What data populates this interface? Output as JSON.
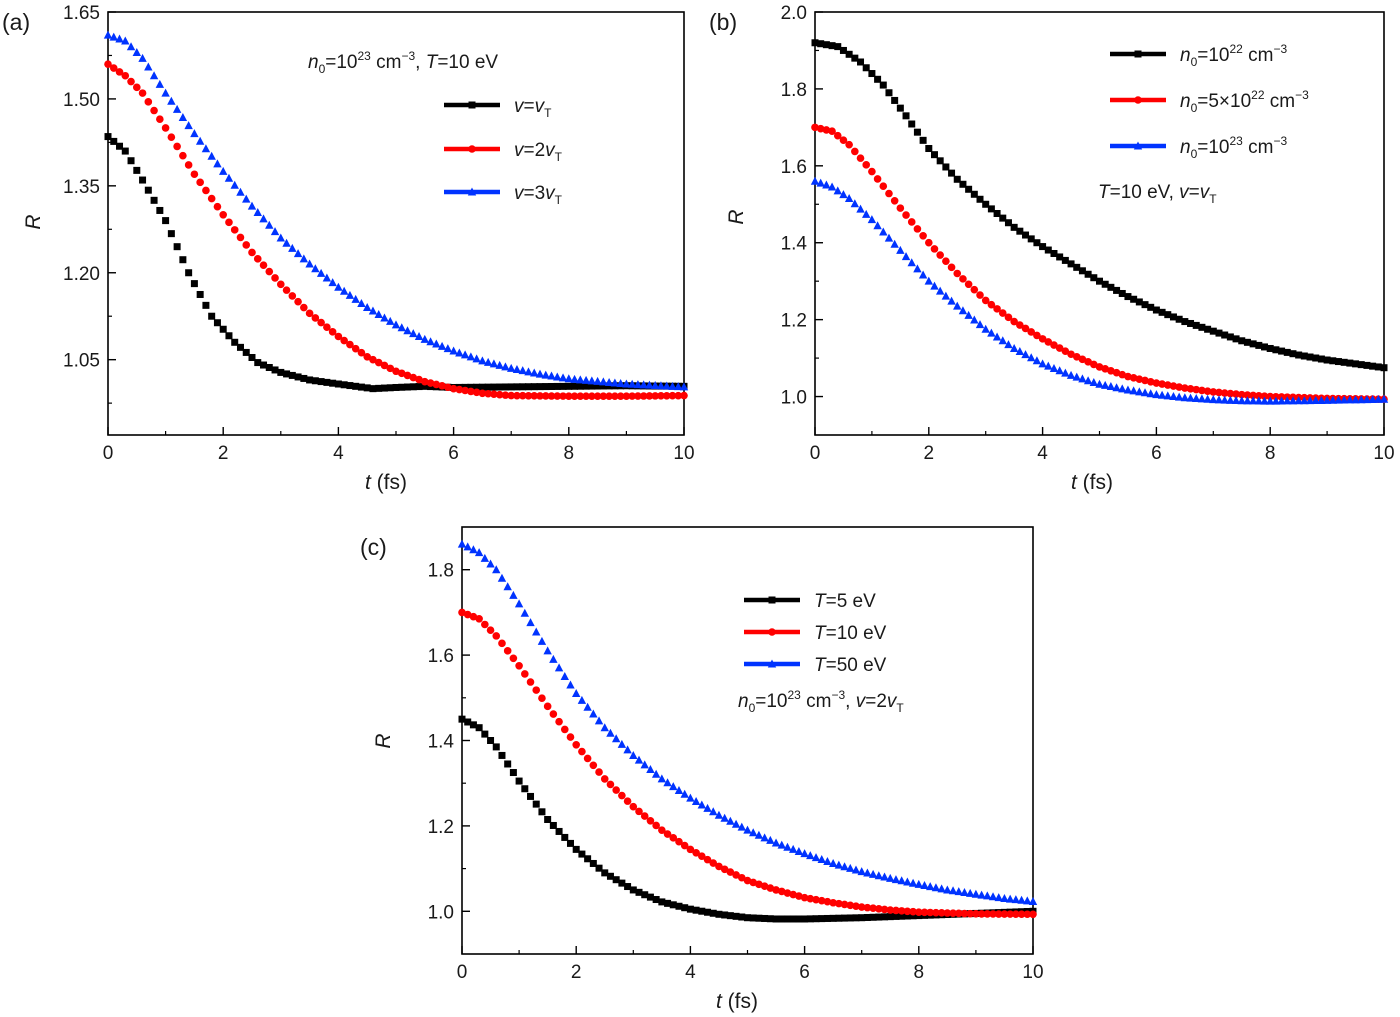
{
  "chart_data": [
    {
      "panel": "(a)",
      "type": "scatter",
      "xlabel": "t (fs)",
      "ylabel": "R",
      "xlim": [
        0,
        10
      ],
      "ylim": [
        0.92,
        1.65
      ],
      "xticks": [
        0,
        2,
        4,
        6,
        8,
        10
      ],
      "yticks": [
        1.05,
        1.2,
        1.35,
        1.5,
        1.65
      ],
      "ytick_labels": [
        "1.05",
        "1.20",
        "1.35",
        "1.50",
        "1.65"
      ],
      "annotation": "n0=10^23 cm^-3, T=10 eV",
      "annotation_parts": [
        "n",
        "0",
        "=10",
        "23",
        " cm",
        "−3",
        ",  ",
        "T",
        "=10 eV"
      ],
      "legend_position": "top-right",
      "series": [
        {
          "name": "v=vT",
          "name_parts": [
            "v",
            "=",
            "v",
            "T"
          ],
          "color": "#000000",
          "marker": "square",
          "points": [
            [
              0,
              1.435
            ],
            [
              0.3,
              1.41
            ],
            [
              0.6,
              1.36
            ],
            [
              1.0,
              1.29
            ],
            [
              1.4,
              1.2
            ],
            [
              1.8,
              1.125
            ],
            [
              2.2,
              1.08
            ],
            [
              2.6,
              1.045
            ],
            [
              3.0,
              1.028
            ],
            [
              3.5,
              1.015
            ],
            [
              4.0,
              1.008
            ],
            [
              4.6,
              1.0
            ],
            [
              5.0,
              1.002
            ],
            [
              5.5,
              1.004
            ],
            [
              6.0,
              1.002
            ],
            [
              7.0,
              1.003
            ],
            [
              8.0,
              1.004
            ],
            [
              9.0,
              1.005
            ],
            [
              10.0,
              1.004
            ]
          ]
        },
        {
          "name": "v=2vT",
          "name_parts": [
            "v",
            "=2",
            "v",
            "T"
          ],
          "color": "#ff0000",
          "marker": "circle",
          "points": [
            [
              0,
              1.56
            ],
            [
              0.3,
              1.54
            ],
            [
              0.6,
              1.51
            ],
            [
              1.0,
              1.45
            ],
            [
              1.5,
              1.37
            ],
            [
              2.0,
              1.3
            ],
            [
              2.5,
              1.235
            ],
            [
              3.0,
              1.18
            ],
            [
              3.5,
              1.13
            ],
            [
              4.0,
              1.09
            ],
            [
              4.5,
              1.055
            ],
            [
              5.0,
              1.03
            ],
            [
              5.5,
              1.012
            ],
            [
              6.0,
              1.0
            ],
            [
              6.5,
              0.992
            ],
            [
              7.0,
              0.988
            ],
            [
              8.0,
              0.987
            ],
            [
              9.0,
              0.987
            ],
            [
              10.0,
              0.988
            ]
          ]
        },
        {
          "name": "v=3vT",
          "name_parts": [
            "v",
            "=3",
            "v",
            "T"
          ],
          "color": "#0033ff",
          "marker": "triangle",
          "points": [
            [
              0,
              1.61
            ],
            [
              0.3,
              1.6
            ],
            [
              0.6,
              1.57
            ],
            [
              1.0,
              1.51
            ],
            [
              1.5,
              1.44
            ],
            [
              2.0,
              1.375
            ],
            [
              2.5,
              1.315
            ],
            [
              3.0,
              1.26
            ],
            [
              3.5,
              1.215
            ],
            [
              4.0,
              1.175
            ],
            [
              4.5,
              1.14
            ],
            [
              5.0,
              1.11
            ],
            [
              5.5,
              1.085
            ],
            [
              6.0,
              1.065
            ],
            [
              6.5,
              1.048
            ],
            [
              7.0,
              1.035
            ],
            [
              7.5,
              1.025
            ],
            [
              8.0,
              1.017
            ],
            [
              9.0,
              1.008
            ],
            [
              10.0,
              1.003
            ]
          ]
        }
      ]
    },
    {
      "panel": "(b)",
      "type": "scatter",
      "xlabel": "t (fs)",
      "ylabel": "R",
      "xlim": [
        0,
        10
      ],
      "ylim": [
        0.9,
        2.0
      ],
      "xticks": [
        0,
        2,
        4,
        6,
        8,
        10
      ],
      "yticks": [
        1.0,
        1.2,
        1.4,
        1.6,
        1.8,
        2.0
      ],
      "ytick_labels": [
        "1.0",
        "1.2",
        "1.4",
        "1.6",
        "1.8",
        "2.0"
      ],
      "annotation": "T=10 eV, v=vT",
      "annotation_parts": [
        "T",
        "=10 eV,  ",
        "v",
        "=",
        "v",
        "T"
      ],
      "legend_position": "top-right",
      "series": [
        {
          "name": "n0=10^22 cm^-3",
          "name_parts": [
            "n",
            "0",
            "=10",
            "22",
            " cm",
            "−3"
          ],
          "color": "#000000",
          "marker": "square",
          "points": [
            [
              0,
              1.92
            ],
            [
              0.4,
              1.91
            ],
            [
              0.8,
              1.87
            ],
            [
              1.2,
              1.81
            ],
            [
              1.6,
              1.73
            ],
            [
              2.0,
              1.645
            ],
            [
              2.5,
              1.565
            ],
            [
              3.0,
              1.5
            ],
            [
              3.5,
              1.44
            ],
            [
              4.0,
              1.39
            ],
            [
              4.5,
              1.345
            ],
            [
              5.0,
              1.3
            ],
            [
              5.5,
              1.26
            ],
            [
              6.0,
              1.225
            ],
            [
              6.5,
              1.195
            ],
            [
              7.0,
              1.17
            ],
            [
              7.5,
              1.145
            ],
            [
              8.0,
              1.125
            ],
            [
              8.5,
              1.108
            ],
            [
              9.0,
              1.095
            ],
            [
              9.5,
              1.085
            ],
            [
              10.0,
              1.075
            ]
          ]
        },
        {
          "name": "n0=5×10^22 cm^-3",
          "name_parts": [
            "n",
            "0",
            "=5×10",
            "22",
            " cm",
            "−3"
          ],
          "color": "#ff0000",
          "marker": "circle",
          "points": [
            [
              0,
              1.7
            ],
            [
              0.3,
              1.69
            ],
            [
              0.6,
              1.655
            ],
            [
              1.0,
              1.585
            ],
            [
              1.5,
              1.49
            ],
            [
              2.0,
              1.4
            ],
            [
              2.5,
              1.32
            ],
            [
              3.0,
              1.25
            ],
            [
              3.5,
              1.195
            ],
            [
              4.0,
              1.15
            ],
            [
              4.5,
              1.11
            ],
            [
              5.0,
              1.077
            ],
            [
              5.5,
              1.052
            ],
            [
              6.0,
              1.035
            ],
            [
              6.5,
              1.022
            ],
            [
              7.0,
              1.012
            ],
            [
              7.5,
              1.005
            ],
            [
              8.0,
              1.0
            ],
            [
              9.0,
              0.995
            ],
            [
              10.0,
              0.993
            ]
          ]
        },
        {
          "name": "n0=10^23 cm^-3",
          "name_parts": [
            "n",
            "0",
            "=10",
            "23",
            " cm",
            "−3"
          ],
          "color": "#0033ff",
          "marker": "triangle",
          "points": [
            [
              0,
              1.56
            ],
            [
              0.3,
              1.545
            ],
            [
              0.6,
              1.515
            ],
            [
              1.0,
              1.46
            ],
            [
              1.5,
              1.38
            ],
            [
              2.0,
              1.3
            ],
            [
              2.5,
              1.235
            ],
            [
              3.0,
              1.175
            ],
            [
              3.5,
              1.125
            ],
            [
              4.0,
              1.085
            ],
            [
              4.5,
              1.055
            ],
            [
              5.0,
              1.032
            ],
            [
              5.5,
              1.017
            ],
            [
              6.0,
              1.005
            ],
            [
              6.5,
              0.997
            ],
            [
              7.0,
              0.992
            ],
            [
              7.5,
              0.989
            ],
            [
              8.0,
              0.988
            ],
            [
              9.0,
              0.99
            ],
            [
              10.0,
              0.993
            ]
          ]
        }
      ]
    },
    {
      "panel": "(c)",
      "type": "scatter",
      "xlabel": "t (fs)",
      "ylabel": "R",
      "xlim": [
        0,
        10
      ],
      "ylim": [
        0.9,
        1.9
      ],
      "xticks": [
        0,
        2,
        4,
        6,
        8,
        10
      ],
      "yticks": [
        1.0,
        1.2,
        1.4,
        1.6,
        1.8
      ],
      "ytick_labels": [
        "1.0",
        "1.2",
        "1.4",
        "1.6",
        "1.8"
      ],
      "annotation": "n0=10^23 cm^-3, v=2vT",
      "annotation_parts": [
        "n",
        "0",
        "=10",
        "23",
        " cm",
        "−3",
        ", ",
        "v",
        "=2",
        "v",
        "T"
      ],
      "legend_position": "top-right",
      "series": [
        {
          "name": "T=5 eV",
          "name_parts": [
            "T",
            "=5 eV"
          ],
          "color": "#000000",
          "marker": "square",
          "points": [
            [
              0,
              1.45
            ],
            [
              0.3,
              1.43
            ],
            [
              0.6,
              1.385
            ],
            [
              1.0,
              1.305
            ],
            [
              1.5,
              1.215
            ],
            [
              2.0,
              1.145
            ],
            [
              2.5,
              1.09
            ],
            [
              3.0,
              1.05
            ],
            [
              3.5,
              1.022
            ],
            [
              4.0,
              1.005
            ],
            [
              4.5,
              0.993
            ],
            [
              5.0,
              0.985
            ],
            [
              5.5,
              0.982
            ],
            [
              6.0,
              0.982
            ],
            [
              7.0,
              0.985
            ],
            [
              8.0,
              0.99
            ],
            [
              9.0,
              0.995
            ],
            [
              10.0,
              1.0
            ]
          ]
        },
        {
          "name": "T=10 eV",
          "name_parts": [
            "T",
            "=10 eV"
          ],
          "color": "#ff0000",
          "marker": "circle",
          "points": [
            [
              0,
              1.7
            ],
            [
              0.3,
              1.685
            ],
            [
              0.6,
              1.645
            ],
            [
              1.0,
              1.575
            ],
            [
              1.5,
              1.48
            ],
            [
              2.0,
              1.39
            ],
            [
              2.5,
              1.31
            ],
            [
              3.0,
              1.245
            ],
            [
              3.5,
              1.19
            ],
            [
              4.0,
              1.145
            ],
            [
              4.5,
              1.105
            ],
            [
              5.0,
              1.072
            ],
            [
              5.5,
              1.05
            ],
            [
              6.0,
              1.032
            ],
            [
              6.5,
              1.02
            ],
            [
              7.0,
              1.01
            ],
            [
              7.5,
              1.003
            ],
            [
              8.0,
              0.998
            ],
            [
              9.0,
              0.994
            ],
            [
              10.0,
              0.993
            ]
          ]
        },
        {
          "name": "T=50 eV",
          "name_parts": [
            "T",
            "=50 eV"
          ],
          "color": "#0033ff",
          "marker": "triangle",
          "points": [
            [
              0,
              1.86
            ],
            [
              0.3,
              1.84
            ],
            [
              0.6,
              1.8
            ],
            [
              1.0,
              1.72
            ],
            [
              1.5,
              1.61
            ],
            [
              2.0,
              1.51
            ],
            [
              2.5,
              1.43
            ],
            [
              3.0,
              1.365
            ],
            [
              3.5,
              1.31
            ],
            [
              4.0,
              1.265
            ],
            [
              4.5,
              1.225
            ],
            [
              5.0,
              1.19
            ],
            [
              5.5,
              1.16
            ],
            [
              6.0,
              1.135
            ],
            [
              6.5,
              1.112
            ],
            [
              7.0,
              1.093
            ],
            [
              7.5,
              1.077
            ],
            [
              8.0,
              1.063
            ],
            [
              8.5,
              1.05
            ],
            [
              9.0,
              1.04
            ],
            [
              9.5,
              1.03
            ],
            [
              10.0,
              1.023
            ]
          ]
        }
      ]
    }
  ]
}
